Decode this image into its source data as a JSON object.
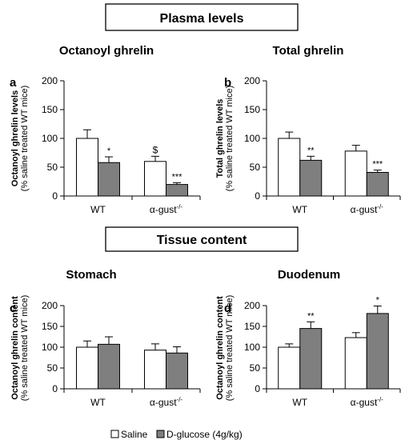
{
  "figure": {
    "section_titles": [
      "Plasma levels",
      "Tissue content"
    ],
    "legend": {
      "items": [
        {
          "label": "Saline",
          "color": "#ffffff"
        },
        {
          "label": "D-glucose (4g/kg)",
          "color": "#7f7f7f"
        }
      ]
    }
  },
  "chart_data": [
    {
      "type": "bar",
      "panel": "a",
      "title": "Octanoyl ghrelin",
      "ylabel_line1": "Octanoyl ghrelin levels",
      "ylabel_line2": "(% saline treated WT mice)",
      "ylim": [
        0,
        200
      ],
      "yticks": [
        0,
        50,
        100,
        150,
        200
      ],
      "categories": [
        "WT",
        "α-gust"
      ],
      "category_superscripts": [
        "",
        "-/-"
      ],
      "series": [
        {
          "name": "Saline",
          "values": [
            100,
            60
          ],
          "errors": [
            15,
            9
          ]
        },
        {
          "name": "D-glucose (4g/kg)",
          "values": [
            58,
            20
          ],
          "errors": [
            10,
            3
          ]
        }
      ],
      "annotations": [
        [
          "",
          "*"
        ],
        [
          "$",
          "***"
        ]
      ]
    },
    {
      "type": "bar",
      "panel": "b",
      "title": "Total ghrelin",
      "ylabel_line1": "Total ghrelin levels",
      "ylabel_line2": "(% saline treated WT mice)",
      "ylim": [
        0,
        200
      ],
      "yticks": [
        0,
        50,
        100,
        150,
        200
      ],
      "categories": [
        "WT",
        "α-gust"
      ],
      "category_superscripts": [
        "",
        "-/-"
      ],
      "series": [
        {
          "name": "Saline",
          "values": [
            100,
            78
          ],
          "errors": [
            11,
            10
          ]
        },
        {
          "name": "D-glucose (4g/kg)",
          "values": [
            62,
            41
          ],
          "errors": [
            7,
            4
          ]
        }
      ],
      "annotations": [
        [
          "",
          "**"
        ],
        [
          "",
          "***"
        ]
      ]
    },
    {
      "type": "bar",
      "panel": "c",
      "title": "Stomach",
      "ylabel_line1": "Octanoyl ghrelin content",
      "ylabel_line2": "(% saline treated WT mice)",
      "ylim": [
        0,
        200
      ],
      "yticks": [
        0,
        50,
        100,
        150,
        200
      ],
      "categories": [
        "WT",
        "α-gust"
      ],
      "category_superscripts": [
        "",
        "-/-"
      ],
      "series": [
        {
          "name": "Saline",
          "values": [
            100,
            93
          ],
          "errors": [
            15,
            15
          ]
        },
        {
          "name": "D-glucose (4g/kg)",
          "values": [
            107,
            86
          ],
          "errors": [
            18,
            15
          ]
        }
      ],
      "annotations": [
        [
          "",
          ""
        ],
        [
          "",
          ""
        ]
      ]
    },
    {
      "type": "bar",
      "panel": "d",
      "title": "Duodenum",
      "ylabel_line1": "Octanoyl ghrelin content",
      "ylabel_line2": "(% saline treated WT mice)",
      "ylim": [
        0,
        200
      ],
      "yticks": [
        0,
        50,
        100,
        150,
        200
      ],
      "categories": [
        "WT",
        "α-gust"
      ],
      "category_superscripts": [
        "",
        "-/-"
      ],
      "series": [
        {
          "name": "Saline",
          "values": [
            100,
            123
          ],
          "errors": [
            8,
            12
          ]
        },
        {
          "name": "D-glucose (4g/kg)",
          "values": [
            145,
            181
          ],
          "errors": [
            16,
            18
          ]
        }
      ],
      "annotations": [
        [
          "",
          "**"
        ],
        [
          "",
          "*"
        ]
      ]
    }
  ]
}
